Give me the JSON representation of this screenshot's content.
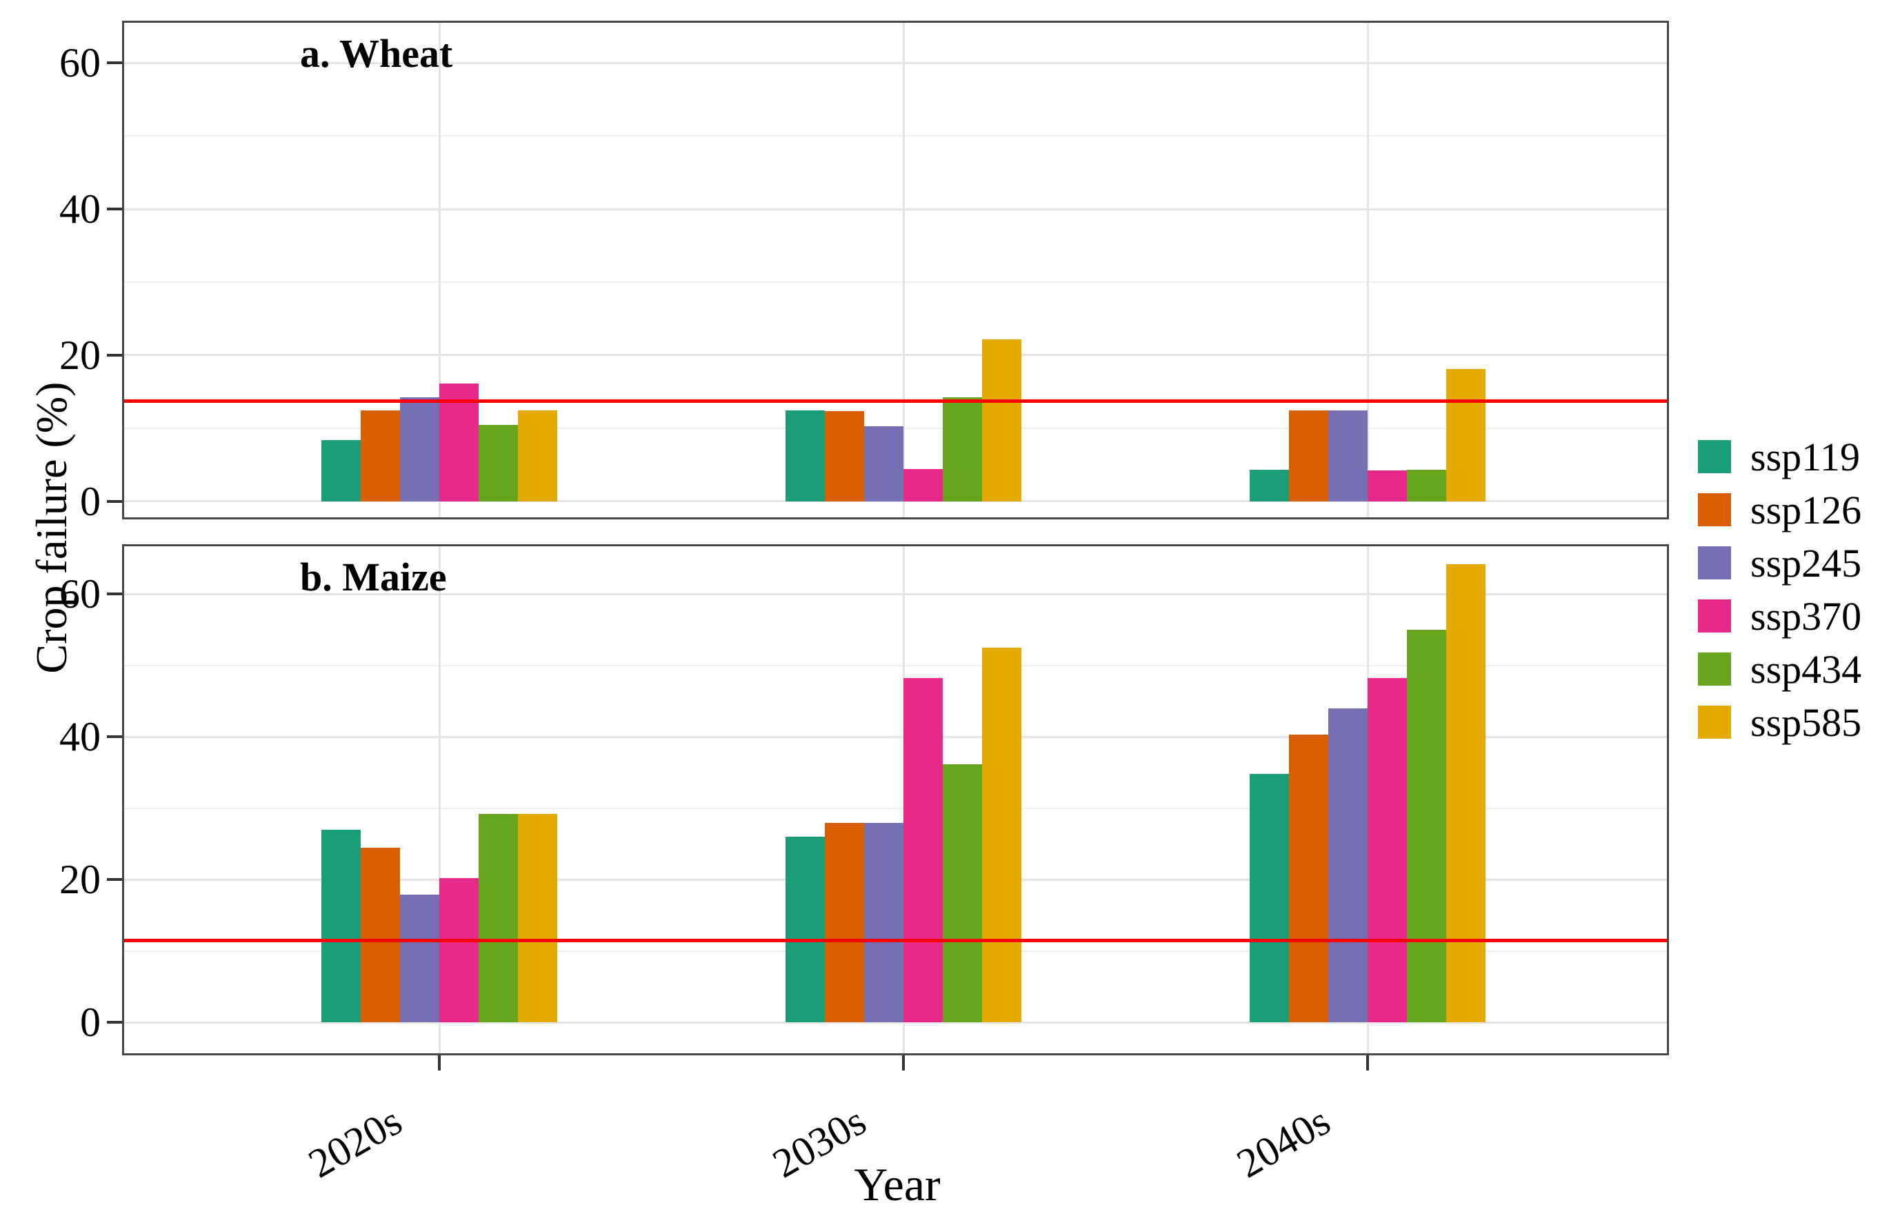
{
  "y_axis": {
    "label": "Crop failure (%)",
    "tick_labels": [
      "0",
      "20",
      "40",
      "60"
    ],
    "tick_values": [
      0,
      20,
      40,
      60
    ]
  },
  "x_axis": {
    "label": "Year",
    "tick_labels": [
      "2020s",
      "2030s",
      "2040s"
    ]
  },
  "panel_labels": [
    "a. Wheat",
    "b. Maize"
  ],
  "legend": {
    "items": [
      {
        "label": "ssp119",
        "color": "#1b9e77"
      },
      {
        "label": "ssp126",
        "color": "#d95f02"
      },
      {
        "label": "ssp245",
        "color": "#7570b3"
      },
      {
        "label": "ssp370",
        "color": "#e7298a"
      },
      {
        "label": "ssp434",
        "color": "#66a61e"
      },
      {
        "label": "ssp585",
        "color": "#e6ab02"
      }
    ]
  },
  "reference_line_color": "#ff0000",
  "chart_data": [
    {
      "type": "bar",
      "title": "a. Wheat",
      "categories": [
        "2020s",
        "2030s",
        "2040s"
      ],
      "series": [
        {
          "name": "ssp119",
          "color": "#1b9e77",
          "values": [
            8.4,
            12.4,
            4.3
          ]
        },
        {
          "name": "ssp126",
          "color": "#d95f02",
          "values": [
            12.4,
            12.3,
            12.4
          ]
        },
        {
          "name": "ssp245",
          "color": "#7570b3",
          "values": [
            14.2,
            10.3,
            12.4
          ]
        },
        {
          "name": "ssp370",
          "color": "#e7298a",
          "values": [
            16.1,
            4.4,
            4.2
          ]
        },
        {
          "name": "ssp434",
          "color": "#66a61e",
          "values": [
            10.4,
            14.2,
            4.3
          ]
        },
        {
          "name": "ssp585",
          "color": "#e6ab02",
          "values": [
            12.4,
            22.2,
            18.1
          ]
        }
      ],
      "refline": 13.7,
      "xlabel": "Year",
      "ylabel": "Crop failure (%)",
      "ylim": [
        -2.5,
        65.8
      ],
      "yticks": [
        0,
        20,
        40,
        60
      ],
      "grid": true,
      "legend_position": "right"
    },
    {
      "type": "bar",
      "title": "b. Maize",
      "categories": [
        "2020s",
        "2030s",
        "2040s"
      ],
      "series": [
        {
          "name": "ssp119",
          "color": "#1b9e77",
          "values": [
            27.0,
            26.0,
            34.8
          ]
        },
        {
          "name": "ssp126",
          "color": "#d95f02",
          "values": [
            24.5,
            28.0,
            40.3
          ]
        },
        {
          "name": "ssp245",
          "color": "#7570b3",
          "values": [
            17.9,
            28.0,
            44.0
          ]
        },
        {
          "name": "ssp370",
          "color": "#e7298a",
          "values": [
            20.2,
            48.3,
            48.3
          ]
        },
        {
          "name": "ssp434",
          "color": "#66a61e",
          "values": [
            29.2,
            36.2,
            55.0
          ]
        },
        {
          "name": "ssp585",
          "color": "#e6ab02",
          "values": [
            29.2,
            52.5,
            64.2
          ]
        }
      ],
      "refline": 11.5,
      "xlabel": "Year",
      "ylabel": "Crop failure (%)",
      "ylim": [
        -4.6,
        67.0
      ],
      "yticks": [
        0,
        20,
        40,
        60
      ],
      "grid": true,
      "legend_position": "right"
    }
  ]
}
